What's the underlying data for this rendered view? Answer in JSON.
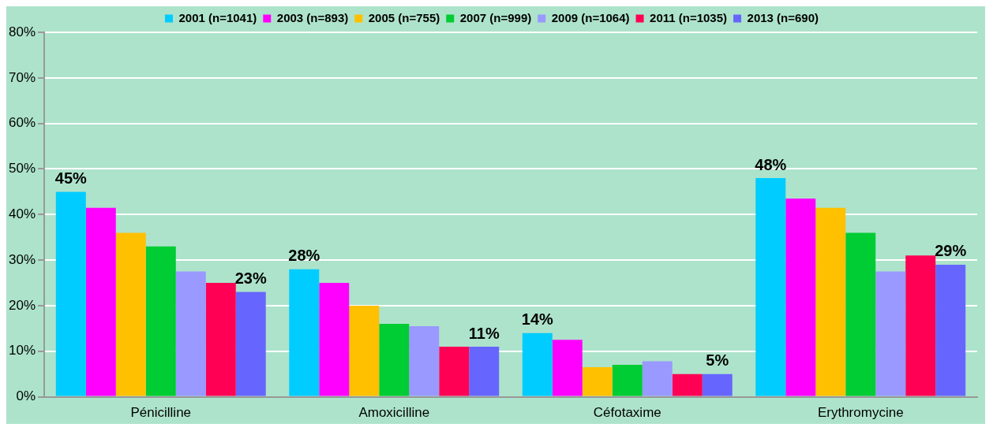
{
  "chart_data": {
    "type": "bar",
    "categories": [
      "Pénicilline",
      "Amoxicilline",
      "Céfotaxime",
      "Erythromycine"
    ],
    "series": [
      {
        "name": "2001 (n=1041)",
        "color": "#00ccff",
        "values": [
          45,
          28,
          14,
          48
        ],
        "value_labels": [
          "45%",
          "28%",
          "14%",
          "48%"
        ]
      },
      {
        "name": "2003 (n=893)",
        "color": "#ff00ff",
        "values": [
          41.5,
          25,
          12.5,
          43.5
        ]
      },
      {
        "name": "2005 (n=755)",
        "color": "#ffc000",
        "values": [
          36,
          20,
          6.5,
          41.5
        ]
      },
      {
        "name": "2007 (n=999)",
        "color": "#00cc33",
        "values": [
          33,
          16,
          7,
          36
        ]
      },
      {
        "name": "2009 (n=1064)",
        "color": "#9999ff",
        "values": [
          27.5,
          15.5,
          7.8,
          27.5
        ]
      },
      {
        "name": "2011 (n=1035)",
        "color": "#ff0055",
        "values": [
          25,
          11,
          5,
          31
        ]
      },
      {
        "name": "2013 (n=690)",
        "color": "#6666ff",
        "values": [
          23,
          11,
          5,
          29
        ],
        "value_labels": [
          "23%",
          "11%",
          "5%",
          "29%"
        ]
      }
    ],
    "ylim": [
      0,
      80
    ],
    "yticks": [
      {
        "value": 0,
        "label": "0%"
      },
      {
        "value": 10,
        "label": "10%"
      },
      {
        "value": 20,
        "label": "20%"
      },
      {
        "value": 30,
        "label": "30%"
      },
      {
        "value": 40,
        "label": "40%"
      },
      {
        "value": 50,
        "label": "50%"
      },
      {
        "value": 60,
        "label": "60%"
      },
      {
        "value": 70,
        "label": "70%"
      },
      {
        "value": 80,
        "label": "80%"
      }
    ],
    "grid": "y",
    "legend": "top"
  }
}
